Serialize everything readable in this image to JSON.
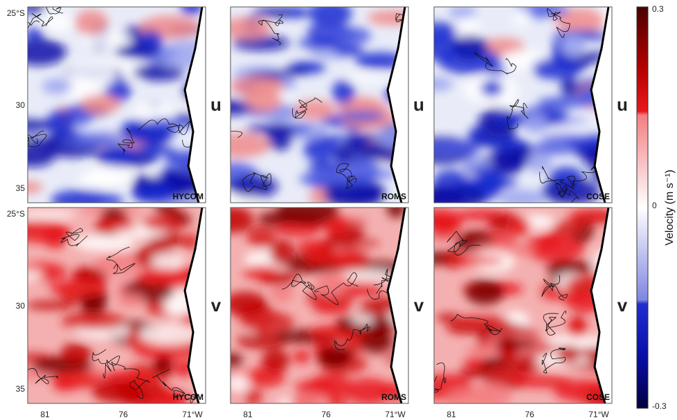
{
  "rows": [
    {
      "component": "u",
      "panels": [
        "HYCOM",
        "ROMS",
        "COSE"
      ]
    },
    {
      "component": "v",
      "panels": [
        "HYCOM",
        "ROMS",
        "COSE"
      ]
    }
  ],
  "lat_labels": [
    "25°S",
    "30",
    "35"
  ],
  "lon_labels": [
    "81",
    "76",
    "71°W"
  ],
  "colorbar": {
    "max": "0.3",
    "zero": "0",
    "min": "-0.3",
    "label": "Velocity (m s⁻¹)"
  }
}
